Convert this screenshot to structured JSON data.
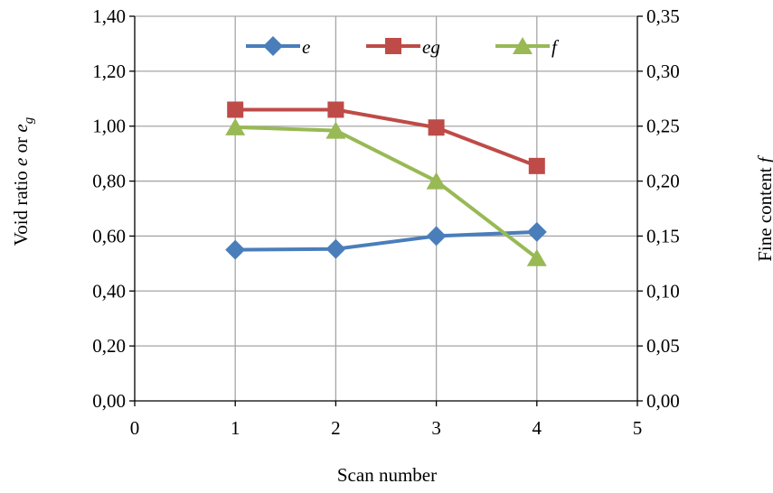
{
  "chart_data": {
    "type": "line",
    "x": [
      1,
      2,
      3,
      4
    ],
    "xlim": [
      0,
      5
    ],
    "x_ticks": [
      "0",
      "1",
      "2",
      "3",
      "4",
      "5"
    ],
    "xlabel": "Scan number",
    "ylim": [
      0,
      1.4
    ],
    "y_ticks": [
      "0,00",
      "0,20",
      "0,40",
      "0,60",
      "0,80",
      "1,00",
      "1,20",
      "1,40"
    ],
    "ylabel": {
      "main": "Void ratio ",
      "e1": "e",
      "or": " or ",
      "e2": "e",
      "sub": "g"
    },
    "y2lim": [
      0,
      0.35
    ],
    "y2_ticks": [
      "0,00",
      "0,05",
      "0,10",
      "0,15",
      "0,20",
      "0,25",
      "0,30",
      "0,35"
    ],
    "y2label": {
      "main": "Fine content ",
      "var": "f"
    },
    "grid": true,
    "legend_position": "top",
    "series": [
      {
        "name": "e",
        "axis": "left",
        "marker": "diamond",
        "color": "#4a7ebb",
        "values": [
          0.55,
          0.553,
          0.6,
          0.615
        ]
      },
      {
        "name": "eg",
        "axis": "left",
        "marker": "square",
        "color": "#be4b48",
        "values": [
          1.06,
          1.06,
          0.995,
          0.855
        ]
      },
      {
        "name": "f",
        "axis": "right",
        "marker": "triangle",
        "color": "#98b954",
        "values": [
          0.249,
          0.246,
          0.2,
          0.13
        ]
      }
    ]
  }
}
